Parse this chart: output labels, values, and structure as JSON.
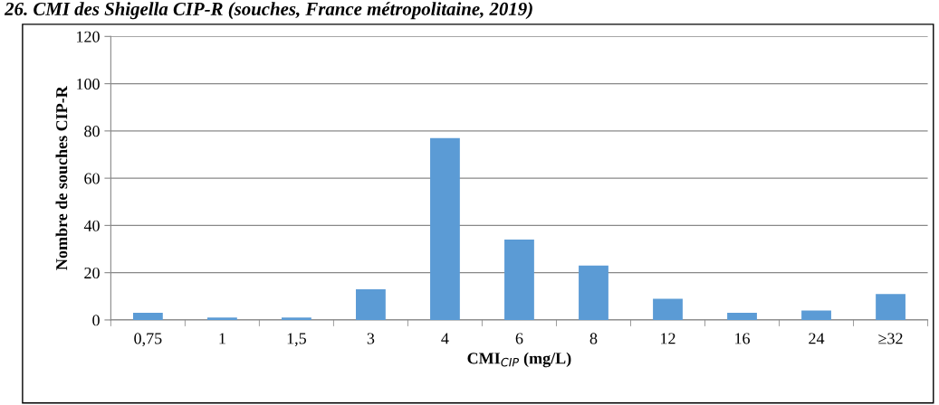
{
  "chart_data": {
    "type": "bar",
    "title": "26. CMI des Shigella CIP-R (souches, France métropolitaine, 2019)",
    "xlabel": "CMI$_{CIP}$ (mg/L)",
    "ylabel": "Nombre de souches CIP-R",
    "categories": [
      "0,75",
      "1",
      "1,5",
      "3",
      "4",
      "6",
      "8",
      "12",
      "16",
      "24",
      "≥32"
    ],
    "values": [
      3,
      1,
      1,
      13,
      77,
      34,
      23,
      9,
      3,
      4,
      11
    ],
    "color": "#5b9bd5",
    "ylim": [
      0,
      120
    ],
    "yticks": [
      0,
      20,
      40,
      60,
      80,
      100,
      120
    ],
    "grid": "y"
  }
}
